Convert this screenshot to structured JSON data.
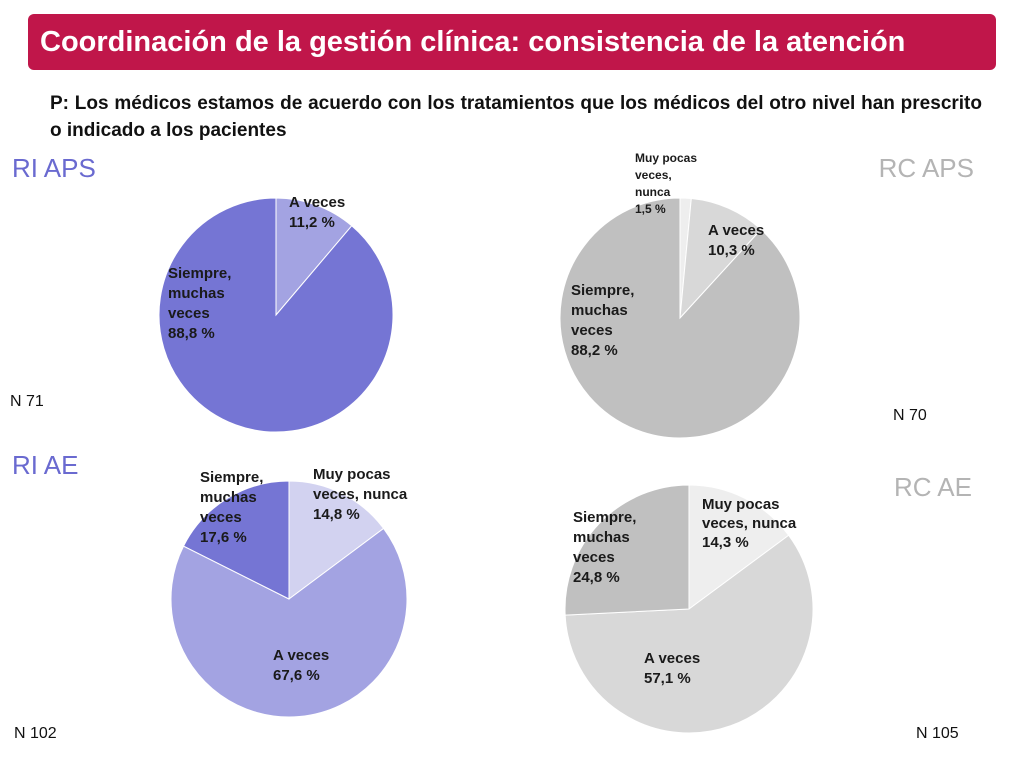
{
  "slide": {
    "title": "Coordinación de la gestión clínica: consistencia de la atención",
    "question": "P: Los médicos estamos de acuerdo con los tratamientos que los médicos del otro nivel han prescrito o indicado a los pacientes"
  },
  "colors": {
    "title_bg": "#c0164a",
    "ri_label": "#6a6ad0",
    "rc_label": "#b4b4b4"
  },
  "chart_data": [
    {
      "type": "pie",
      "title": "RI APS",
      "n": "N 71",
      "slices": [
        {
          "label": [
            "A veces",
            "11,2 %"
          ],
          "value": 11.2,
          "color": "#a3a3e2"
        },
        {
          "label": [
            "Siempre,",
            "muchas",
            "veces",
            "88,8 %"
          ],
          "value": 88.8,
          "color": "#7575d4"
        }
      ]
    },
    {
      "type": "pie",
      "title": "RC APS",
      "n": "N 70",
      "slices": [
        {
          "label": [
            "Muy pocas",
            "veces,",
            "nunca",
            "1,5 %"
          ],
          "value": 1.5,
          "color": "#eeeeee"
        },
        {
          "label": [
            "A veces",
            "10,3 %"
          ],
          "value": 10.3,
          "color": "#d8d8d8"
        },
        {
          "label": [
            "Siempre,",
            "muchas",
            "veces",
            "88,2 %"
          ],
          "value": 88.2,
          "color": "#c0c0c0"
        }
      ]
    },
    {
      "type": "pie",
      "title": "RI AE",
      "n": "N 102",
      "slices": [
        {
          "label": [
            "Muy pocas",
            "veces, nunca",
            "14,8 %"
          ],
          "value": 14.8,
          "color": "#d2d2f0"
        },
        {
          "label": [
            "A veces",
            "67,6 %"
          ],
          "value": 67.6,
          "color": "#a3a3e2"
        },
        {
          "label": [
            "Siempre,",
            "muchas",
            "veces",
            "17,6 %"
          ],
          "value": 17.6,
          "color": "#7575d4"
        }
      ]
    },
    {
      "type": "pie",
      "title": "RC AE",
      "n": "N 105",
      "slices": [
        {
          "label": [
            "Muy pocas",
            "veces, nunca",
            "14,3 %"
          ],
          "value": 14.3,
          "color": "#eeeeee"
        },
        {
          "label": [
            "A veces",
            "57,1 %"
          ],
          "value": 57.1,
          "color": "#d8d8d8"
        },
        {
          "label": [
            "Siempre,",
            "muchas",
            "veces",
            "24,8 %"
          ],
          "value": 24.8,
          "color": "#c0c0c0"
        }
      ]
    }
  ]
}
